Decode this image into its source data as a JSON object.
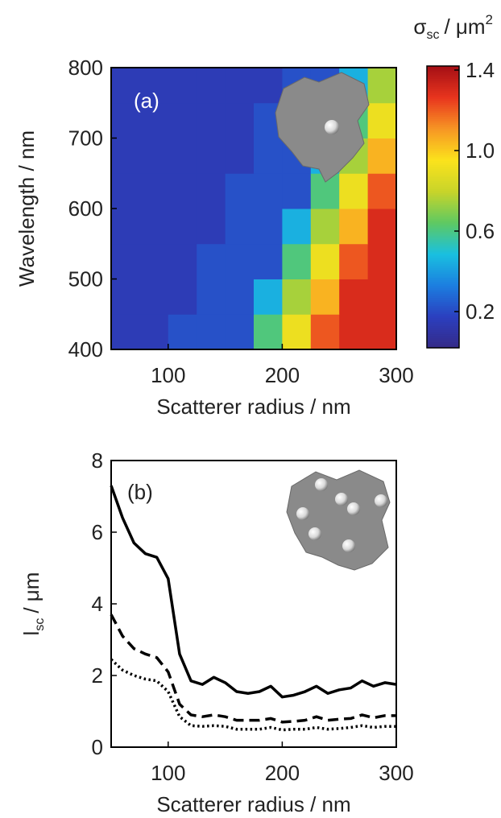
{
  "chart_data": [
    {
      "type": "heatmap",
      "annotation": "(a)",
      "xlabel": "Scatterer radius / nm",
      "ylabel": "Wavelength / nm",
      "colorbar_label": {
        "symbol": "σ",
        "subscript": "sc",
        "unit": "/ μm",
        "superscript": "2"
      },
      "x": [
        62.5,
        87.5,
        112.5,
        137.5,
        162.5,
        187.5,
        212.5,
        237.5,
        262.5,
        287.5
      ],
      "y": [
        425,
        475,
        525,
        575,
        625,
        675,
        725,
        775
      ],
      "z": [
        [
          0.15,
          0.15,
          0.22,
          0.22,
          0.22,
          0.61,
          0.91,
          1.21,
          1.3,
          1.3
        ],
        [
          0.15,
          0.15,
          0.15,
          0.22,
          0.22,
          0.45,
          0.75,
          1.05,
          1.3,
          1.3
        ],
        [
          0.15,
          0.15,
          0.15,
          0.22,
          0.22,
          0.22,
          0.61,
          0.91,
          1.21,
          1.3
        ],
        [
          0.15,
          0.15,
          0.15,
          0.15,
          0.22,
          0.22,
          0.45,
          0.75,
          1.05,
          1.3
        ],
        [
          0.15,
          0.15,
          0.15,
          0.15,
          0.22,
          0.22,
          0.22,
          0.61,
          0.91,
          1.21
        ],
        [
          0.15,
          0.15,
          0.15,
          0.15,
          0.15,
          0.22,
          0.22,
          0.45,
          0.75,
          1.05
        ],
        [
          0.15,
          0.15,
          0.15,
          0.15,
          0.15,
          0.22,
          0.22,
          0.22,
          0.61,
          0.91
        ],
        [
          0.15,
          0.15,
          0.15,
          0.15,
          0.15,
          0.15,
          0.22,
          0.22,
          0.45,
          0.75
        ]
      ],
      "xlim": [
        50,
        300
      ],
      "xticks": [
        100,
        200,
        300
      ],
      "ylim": [
        400,
        800
      ],
      "yticks": [
        400,
        500,
        600,
        700,
        800
      ],
      "zlim": [
        0.02,
        1.42
      ],
      "zticks": [
        0.2,
        0.6,
        {
          "value": 1.0,
          "label": "1.0"
        },
        1.4
      ],
      "colormap": [
        "#352a87",
        "#2b3fbf",
        "#1c7ee0",
        "#19c0e0",
        "#5ec962",
        "#c8d42a",
        "#fbe31c",
        "#f79624",
        "#e8351e",
        "#a50f15"
      ]
    },
    {
      "type": "line",
      "annotation": "(b)",
      "xlabel": "Scatterer radius / nm",
      "ylabel": {
        "symbol": "l",
        "subscript": "sc",
        "unit": "/ μm"
      },
      "x": [
        50,
        60,
        70,
        80,
        90,
        100,
        110,
        120,
        130,
        140,
        150,
        160,
        170,
        180,
        190,
        200,
        210,
        220,
        230,
        240,
        250,
        260,
        270,
        280,
        290,
        300
      ],
      "series": [
        {
          "color": "#000000",
          "linestyle": "solid",
          "values": [
            7.3,
            6.4,
            5.7,
            5.4,
            5.3,
            4.7,
            2.6,
            1.85,
            1.75,
            1.95,
            1.8,
            1.55,
            1.5,
            1.55,
            1.7,
            1.4,
            1.45,
            1.55,
            1.7,
            1.5,
            1.6,
            1.65,
            1.85,
            1.7,
            1.8,
            1.75
          ]
        },
        {
          "color": "#000000",
          "linestyle": "dashed",
          "values": [
            3.7,
            3.1,
            2.75,
            2.6,
            2.5,
            2.1,
            1.2,
            0.9,
            0.85,
            0.9,
            0.85,
            0.75,
            0.75,
            0.75,
            0.8,
            0.7,
            0.72,
            0.75,
            0.85,
            0.75,
            0.78,
            0.8,
            0.9,
            0.82,
            0.88,
            0.88
          ]
        },
        {
          "color": "#000000",
          "linestyle": "dotted",
          "values": [
            2.45,
            2.15,
            2.0,
            1.9,
            1.85,
            1.55,
            0.85,
            0.6,
            0.58,
            0.6,
            0.58,
            0.5,
            0.5,
            0.5,
            0.55,
            0.48,
            0.5,
            0.5,
            0.55,
            0.5,
            0.52,
            0.55,
            0.6,
            0.55,
            0.58,
            0.58
          ]
        }
      ],
      "xlim": [
        50,
        300
      ],
      "xticks": [
        100,
        200,
        300
      ],
      "ylim": [
        0,
        8
      ],
      "yticks": [
        0,
        2,
        4,
        6,
        8
      ]
    }
  ]
}
